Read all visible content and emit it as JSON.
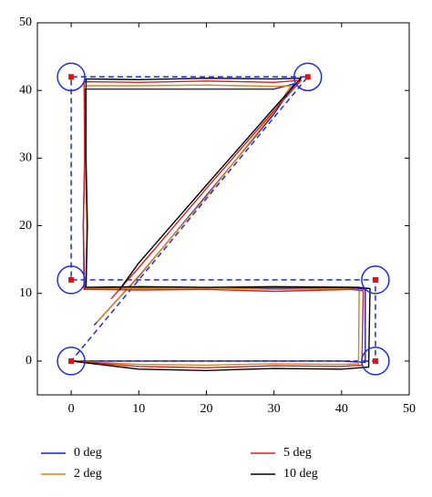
{
  "chart_data": {
    "type": "line",
    "xlim": [
      -5,
      50
    ],
    "ylim": [
      -5,
      50
    ],
    "xticks": [
      0,
      10,
      20,
      30,
      40,
      50
    ],
    "yticks": [
      0,
      10,
      20,
      30,
      40,
      50
    ],
    "reference": {
      "color": "#1f2fd0",
      "x": [
        0,
        45,
        45,
        0,
        0,
        35,
        0
      ],
      "y": [
        0,
        0,
        12,
        12,
        42,
        42,
        0
      ]
    },
    "waypoints": {
      "color": "#e01010",
      "ring_color": "#1f2fd0",
      "x": [
        0,
        35,
        0,
        45,
        0,
        45
      ],
      "y": [
        42,
        42,
        12,
        12,
        0,
        0
      ]
    },
    "series": [
      {
        "name": "0 deg",
        "color": "#1f1fbf",
        "x": [
          0,
          10,
          20,
          30,
          40,
          43.5,
          43.5,
          42,
          30,
          20,
          10,
          2,
          1.8,
          2,
          2,
          10,
          20,
          30,
          33,
          30,
          20,
          10,
          3.4
        ],
        "y": [
          0,
          0,
          0,
          0,
          0,
          -0.2,
          10.6,
          10.8,
          10.8,
          10.8,
          10.8,
          10.7,
          20,
          30,
          40.2,
          40.2,
          40.2,
          40.2,
          41,
          36.5,
          24.5,
          12.5,
          5.3
        ]
      },
      {
        "name": "2 deg",
        "color": "#d9841a",
        "x": [
          0,
          10,
          20,
          30,
          40,
          42.5,
          42.6,
          41,
          30,
          20,
          10,
          2.2,
          2.3,
          2.1,
          2.2,
          10,
          20,
          30,
          32.5,
          30,
          20,
          10,
          3.8
        ],
        "y": [
          0,
          -0.5,
          -0.6,
          -0.4,
          -0.5,
          -0.4,
          10.5,
          10.7,
          10.6,
          10.8,
          10.7,
          10.7,
          20,
          30,
          40.7,
          40.7,
          40.8,
          40.6,
          40.7,
          36.8,
          24.3,
          12.6,
          5.7
        ]
      },
      {
        "name": "5 deg",
        "color": "#d42020",
        "x": [
          0,
          10,
          20,
          30,
          40,
          43,
          43.2,
          41.5,
          30,
          20,
          10,
          1.9,
          1.8,
          2,
          1.9,
          10,
          20,
          30,
          34,
          30,
          20,
          10,
          5.9
        ],
        "y": [
          0,
          -0.8,
          -1,
          -0.7,
          -0.8,
          -0.6,
          10.4,
          10.6,
          10.3,
          10.6,
          10.5,
          10.6,
          20,
          30,
          41.3,
          41.2,
          41.4,
          41.2,
          41.5,
          37,
          25.5,
          13.8,
          9.2
        ]
      },
      {
        "name": "10 deg",
        "color": "#000000",
        "x": [
          0,
          10,
          20,
          30,
          40,
          44,
          44.2,
          42.5,
          30,
          20,
          10,
          2.2,
          2.4,
          2.2,
          2.2,
          10,
          20,
          30,
          34,
          30,
          20,
          10,
          7.1
        ],
        "y": [
          0,
          -1.2,
          -1.4,
          -1.1,
          -1.2,
          -0.9,
          10.7,
          10.9,
          11,
          10.9,
          11,
          10.9,
          20,
          30,
          41.7,
          41.6,
          41.8,
          41.7,
          41.8,
          37.4,
          26,
          14.5,
          10.5
        ]
      }
    ]
  }
}
